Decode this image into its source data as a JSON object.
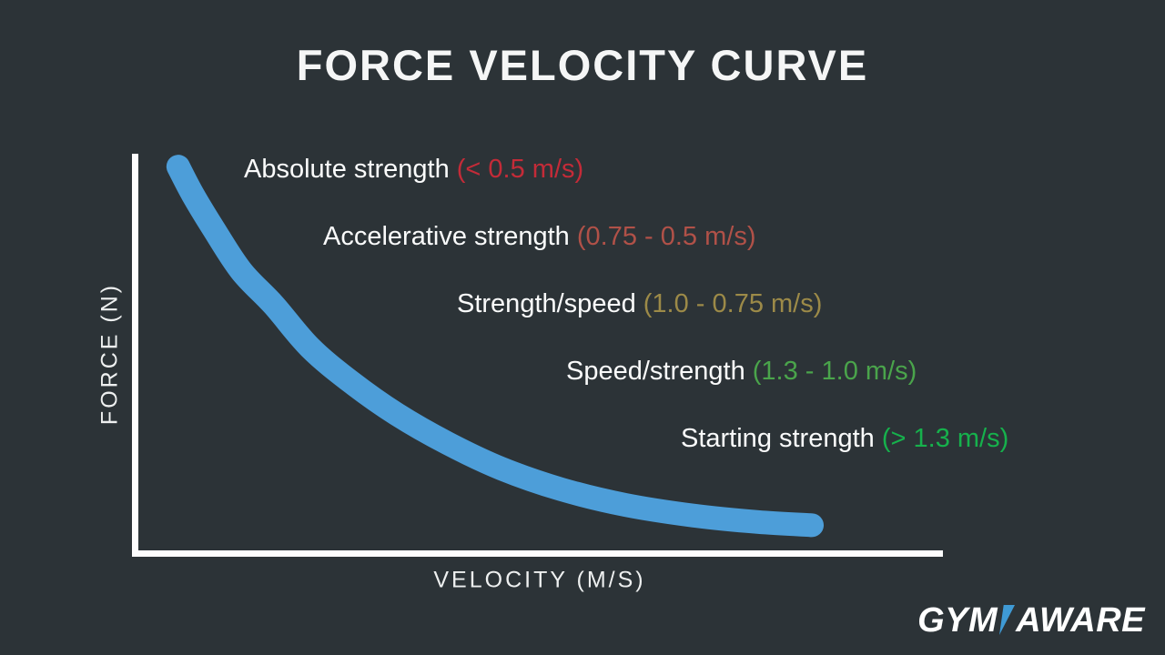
{
  "title": "FORCE VELOCITY CURVE",
  "chart_data": {
    "type": "line",
    "title": "FORCE VELOCITY CURVE",
    "xlabel": "VELOCITY (M/S)",
    "ylabel": "FORCE (N)",
    "axis_ticks": "none",
    "legend": "none",
    "grid": false,
    "curve_color": "#4d9ed9",
    "axis_color": "#fdfdfd",
    "curve_description": "schematic hyperbolic force-velocity decay: force is highest at low velocity and falls toward zero as velocity increases",
    "curve_points_frac": [
      [
        0.055,
        0.03
      ],
      [
        0.073,
        0.1
      ],
      [
        0.099,
        0.187
      ],
      [
        0.133,
        0.292
      ],
      [
        0.173,
        0.377
      ],
      [
        0.218,
        0.484
      ],
      [
        0.269,
        0.571
      ],
      [
        0.325,
        0.651
      ],
      [
        0.388,
        0.724
      ],
      [
        0.455,
        0.788
      ],
      [
        0.529,
        0.84
      ],
      [
        0.608,
        0.879
      ],
      [
        0.693,
        0.906
      ],
      [
        0.772,
        0.922
      ],
      [
        0.839,
        0.93
      ]
    ],
    "zones": [
      {
        "label": "Absolute strength",
        "range_text": "(< 0.5 m/s)",
        "color": "#c42b38"
      },
      {
        "label": "Accelerative strength",
        "range_text": "(0.75 - 0.5 m/s)",
        "color": "#b05148"
      },
      {
        "label": "Strength/speed",
        "range_text": "(1.0 - 0.75 m/s)",
        "color": "#9c8a48"
      },
      {
        "label": "Speed/strength",
        "range_text": "(1.3 - 1.0 m/s)",
        "color": "#4aa44b"
      },
      {
        "label": "Starting strength",
        "range_text": "(> 1.3 m/s)",
        "color": "#16b14c"
      }
    ]
  },
  "branding": {
    "logo_text_left": "GYM",
    "logo_text_right": "AWARE",
    "logo_accent_color": "#3f9ad5"
  },
  "colors": {
    "background": "#2c3337",
    "text": "#f5f6f6"
  }
}
